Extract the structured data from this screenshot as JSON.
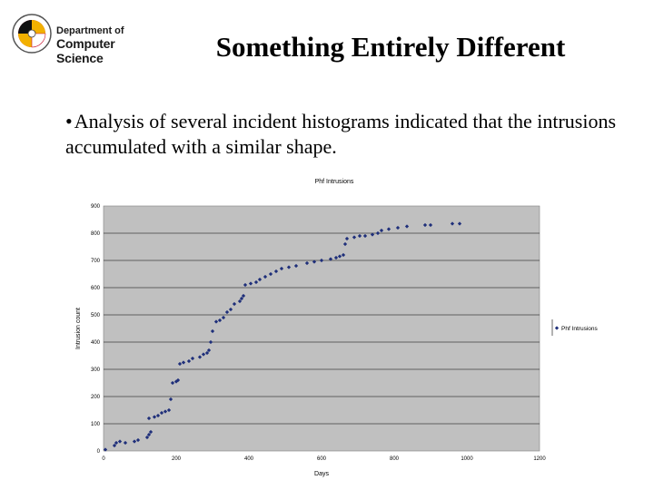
{
  "header": {
    "dept_line1": "Department of",
    "dept_line2": "Computer Science",
    "seal_icon": "university-seal-icon"
  },
  "slide": {
    "title": "Something Entirely Different",
    "bullet_marker": "•",
    "bullet_text": "Analysis of several incident histograms indicated that the intrusions accumulated with a similar shape."
  },
  "colors": {
    "plot_bg": "#c0c0c0",
    "marker": "#1f2f7a",
    "grid": "#000000"
  },
  "chart_data": {
    "type": "scatter",
    "title": "Phf Intrusions",
    "xlabel": "Days",
    "ylabel": "Intrusion count",
    "xlim": [
      0,
      1200
    ],
    "ylim": [
      0,
      900
    ],
    "x_ticks": [
      0,
      200,
      400,
      600,
      800,
      1000,
      1200
    ],
    "y_ticks": [
      0,
      100,
      200,
      300,
      400,
      500,
      600,
      700,
      800,
      900
    ],
    "grid": "horizontal",
    "legend": {
      "position": "right",
      "entries": [
        "Phf Intrusions"
      ]
    },
    "series": [
      {
        "name": "Phf Intrusions",
        "points": [
          [
            5,
            5
          ],
          [
            30,
            20
          ],
          [
            35,
            30
          ],
          [
            45,
            35
          ],
          [
            60,
            30
          ],
          [
            85,
            35
          ],
          [
            95,
            40
          ],
          [
            120,
            50
          ],
          [
            125,
            60
          ],
          [
            130,
            70
          ],
          [
            125,
            120
          ],
          [
            140,
            125
          ],
          [
            150,
            130
          ],
          [
            160,
            140
          ],
          [
            170,
            145
          ],
          [
            180,
            150
          ],
          [
            185,
            190
          ],
          [
            190,
            250
          ],
          [
            200,
            255
          ],
          [
            205,
            260
          ],
          [
            210,
            320
          ],
          [
            220,
            325
          ],
          [
            235,
            330
          ],
          [
            245,
            340
          ],
          [
            265,
            345
          ],
          [
            275,
            355
          ],
          [
            285,
            360
          ],
          [
            290,
            370
          ],
          [
            295,
            400
          ],
          [
            300,
            440
          ],
          [
            310,
            475
          ],
          [
            320,
            480
          ],
          [
            330,
            490
          ],
          [
            340,
            510
          ],
          [
            350,
            520
          ],
          [
            360,
            540
          ],
          [
            375,
            550
          ],
          [
            380,
            560
          ],
          [
            385,
            570
          ],
          [
            390,
            610
          ],
          [
            405,
            615
          ],
          [
            420,
            620
          ],
          [
            430,
            630
          ],
          [
            445,
            640
          ],
          [
            460,
            650
          ],
          [
            475,
            660
          ],
          [
            490,
            670
          ],
          [
            510,
            675
          ],
          [
            530,
            680
          ],
          [
            560,
            690
          ],
          [
            580,
            695
          ],
          [
            600,
            700
          ],
          [
            625,
            705
          ],
          [
            640,
            710
          ],
          [
            650,
            715
          ],
          [
            660,
            720
          ],
          [
            665,
            760
          ],
          [
            670,
            780
          ],
          [
            690,
            785
          ],
          [
            705,
            790
          ],
          [
            720,
            790
          ],
          [
            740,
            795
          ],
          [
            755,
            800
          ],
          [
            765,
            810
          ],
          [
            785,
            815
          ],
          [
            810,
            820
          ],
          [
            835,
            825
          ],
          [
            885,
            830
          ],
          [
            900,
            830
          ],
          [
            960,
            835
          ],
          [
            980,
            835
          ]
        ]
      }
    ]
  }
}
